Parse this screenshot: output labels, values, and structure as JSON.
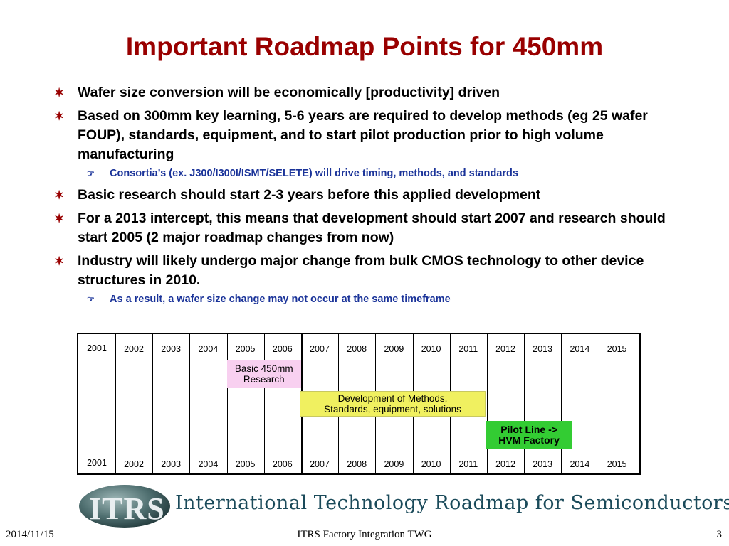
{
  "title": "Important Roadmap Points for 450mm",
  "bullet_marker": "✶",
  "sub_marker": "☞",
  "bullets": [
    {
      "text": "Wafer size conversion will be economically [productivity] driven"
    },
    {
      "text": "Based on 300mm key learning, 5-6 years are required to develop methods (eg 25 wafer FOUP), standards, equipment, and to start pilot production prior to high volume manufacturing",
      "sub": "Consortia’s (ex. J300/I300I/ISMT/SELETE) will drive timing, methods, and standards"
    },
    {
      "text": "Basic research should start 2-3 years before this applied development"
    },
    {
      "text": "For a 2013 intercept, this means that development should start 2007 and research should start 2005 (2 major roadmap changes from now)"
    },
    {
      "text": "Industry will likely undergo major change from bulk CMOS technology to other device structures in 2010.",
      "sub": "As a result, a wafer size change may not occur at the same timeframe"
    }
  ],
  "timeline": {
    "years": [
      "2001",
      "2002",
      "2003",
      "2004",
      "2005",
      "2006",
      "2007",
      "2008",
      "2009",
      "2010",
      "2011",
      "2012",
      "2013",
      "2014",
      "2015"
    ],
    "bars": [
      {
        "label_1": "Basic 450mm",
        "label_2": "Research",
        "start_year": "2005",
        "end_year": "2007"
      },
      {
        "label_1": "Development of Methods,",
        "label_2": "Standards, equipment, solutions",
        "start_year": "2007",
        "end_year": "2012"
      },
      {
        "label_1": "Pilot Line  ->",
        "label_2": "HVM Factory",
        "start_year": "2012",
        "end_year": "2013"
      }
    ]
  },
  "logo": {
    "globe_text": "ITRS",
    "name": "International Technology Roadmap for Semiconductors"
  },
  "footer": {
    "date": "2014/11/15",
    "center": "ITRS Factory Integration TWG",
    "page": "3"
  },
  "colors": {
    "title": "#990000",
    "sub_bullet": "#1a3399",
    "research_bar": "#f8d0f0",
    "dev_bar": "#f0f060",
    "pilot_bar": "#33cc33"
  }
}
